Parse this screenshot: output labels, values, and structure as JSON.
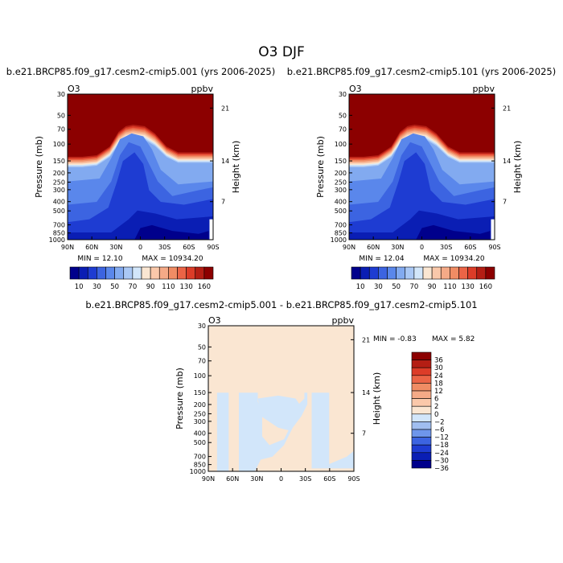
{
  "figure_title": "O3 DJF",
  "colors": {
    "levels_abs": [
      "#00008c",
      "#0a1eb4",
      "#1e3cd2",
      "#3c64e1",
      "#5a87eb",
      "#82aaf0",
      "#aac8f5",
      "#d2e6fa",
      "#fae6d2",
      "#fac8aa",
      "#f5aa87",
      "#f08c64",
      "#eb6446",
      "#dc3c28",
      "#b41e14",
      "#8c0000"
    ],
    "levels_diff": [
      "#00008c",
      "#0a1eb4",
      "#1e3cd2",
      "#3c64e1",
      "#6e96eb",
      "#a0bef0",
      "#d2e6fa",
      "#fae6d2",
      "#fac8aa",
      "#f5aa87",
      "#f08c64",
      "#eb6446",
      "#dc3c28",
      "#b41e14",
      "#8c0000"
    ]
  },
  "panels": [
    {
      "title": "b.e21.BRCP85.f09_g17.cesm2-cmip5.001 (yrs 2006-2025)",
      "var": "O3",
      "units": "ppbv",
      "ylabel": "Pressure (mb)",
      "y2label": "Height (km)",
      "yticks": [
        "30",
        "50",
        "70",
        "100",
        "150",
        "200",
        "250",
        "300",
        "400",
        "500",
        "700",
        "850",
        "1000"
      ],
      "y2ticks": [
        "21",
        "14",
        "7"
      ],
      "xticks": [
        "90N",
        "60N",
        "30N",
        "0",
        "30S",
        "60S",
        "90S"
      ],
      "min_label": "MIN =",
      "min": "12.10",
      "max_label": "MAX =",
      "max": "10934.20"
    },
    {
      "title": "b.e21.BRCP85.f09_g17.cesm2-cmip5.101 (yrs 2006-2025)",
      "var": "O3",
      "units": "ppbv",
      "ylabel": "Pressure (mb)",
      "y2label": "Height (km)",
      "yticks": [
        "30",
        "50",
        "70",
        "100",
        "150",
        "200",
        "250",
        "300",
        "400",
        "500",
        "700",
        "850",
        "1000"
      ],
      "y2ticks": [
        "21",
        "14",
        "7"
      ],
      "xticks": [
        "90N",
        "60N",
        "30N",
        "0",
        "30S",
        "60S",
        "90S"
      ],
      "min_label": "MIN =",
      "min": "12.04",
      "max_label": "MAX =",
      "max": "10934.20"
    },
    {
      "title": "b.e21.BRCP85.f09_g17.cesm2-cmip5.001 - b.e21.BRCP85.f09_g17.cesm2-cmip5.101",
      "var": "O3",
      "units": "ppbv",
      "ylabel": "Pressure (mb)",
      "y2label": "Height (km)",
      "yticks": [
        "30",
        "50",
        "70",
        "100",
        "150",
        "200",
        "250",
        "300",
        "400",
        "500",
        "700",
        "850",
        "1000"
      ],
      "y2ticks": [
        "21",
        "14",
        "7"
      ],
      "xticks": [
        "90N",
        "60N",
        "30N",
        "0",
        "30S",
        "60S",
        "90S"
      ],
      "min_label": "MIN =",
      "min": "-0.83",
      "max_label": "MAX =",
      "max": "5.82"
    }
  ],
  "colorbar_abs": {
    "labels": [
      "10",
      "30",
      "50",
      "70",
      "90",
      "110",
      "130",
      "160"
    ]
  },
  "colorbar_diff": {
    "labels": [
      "36",
      "30",
      "24",
      "18",
      "12",
      "6",
      "2",
      "0",
      "−2",
      "−6",
      "−12",
      "−18",
      "−24",
      "−30",
      "−36"
    ]
  },
  "chart_data": [
    {
      "type": "heatmap",
      "title": "b.e21.BRCP85.f09_g17.cesm2-cmip5.001 (yrs 2006-2025)",
      "xlabel": "",
      "ylabel": "Pressure (mb)",
      "x": [
        "90N",
        "60N",
        "30N",
        "0",
        "30S",
        "60S",
        "90S"
      ],
      "y": [
        30,
        50,
        70,
        100,
        150,
        200,
        250,
        300,
        400,
        500,
        700,
        850,
        1000
      ],
      "ylim": [
        1000,
        30
      ],
      "y_scale": "log",
      "contour_levels": [
        10,
        20,
        30,
        40,
        50,
        60,
        70,
        80,
        90,
        100,
        110,
        120,
        130,
        140,
        150,
        160
      ],
      "min": 12.1,
      "max": 10934.2
    },
    {
      "type": "heatmap",
      "title": "b.e21.BRCP85.f09_g17.cesm2-cmip5.101 (yrs 2006-2025)",
      "xlabel": "",
      "ylabel": "Pressure (mb)",
      "x": [
        "90N",
        "60N",
        "30N",
        "0",
        "30S",
        "60S",
        "90S"
      ],
      "y": [
        30,
        50,
        70,
        100,
        150,
        200,
        250,
        300,
        400,
        500,
        700,
        850,
        1000
      ],
      "ylim": [
        1000,
        30
      ],
      "y_scale": "log",
      "contour_levels": [
        10,
        20,
        30,
        40,
        50,
        60,
        70,
        80,
        90,
        100,
        110,
        120,
        130,
        140,
        150,
        160
      ],
      "min": 12.04,
      "max": 10934.2
    },
    {
      "type": "heatmap",
      "title": "b.e21.BRCP85.f09_g17.cesm2-cmip5.001 - b.e21.BRCP85.f09_g17.cesm2-cmip5.101",
      "xlabel": "",
      "ylabel": "Pressure (mb)",
      "x": [
        "90N",
        "60N",
        "30N",
        "0",
        "30S",
        "60S",
        "90S"
      ],
      "y": [
        30,
        50,
        70,
        100,
        150,
        200,
        250,
        300,
        400,
        500,
        700,
        850,
        1000
      ],
      "ylim": [
        1000,
        30
      ],
      "y_scale": "log",
      "contour_levels": [
        -36,
        -30,
        -24,
        -18,
        -12,
        -6,
        -2,
        0,
        2,
        6,
        12,
        18,
        24,
        30,
        36
      ],
      "min": -0.83,
      "max": 5.82
    }
  ]
}
